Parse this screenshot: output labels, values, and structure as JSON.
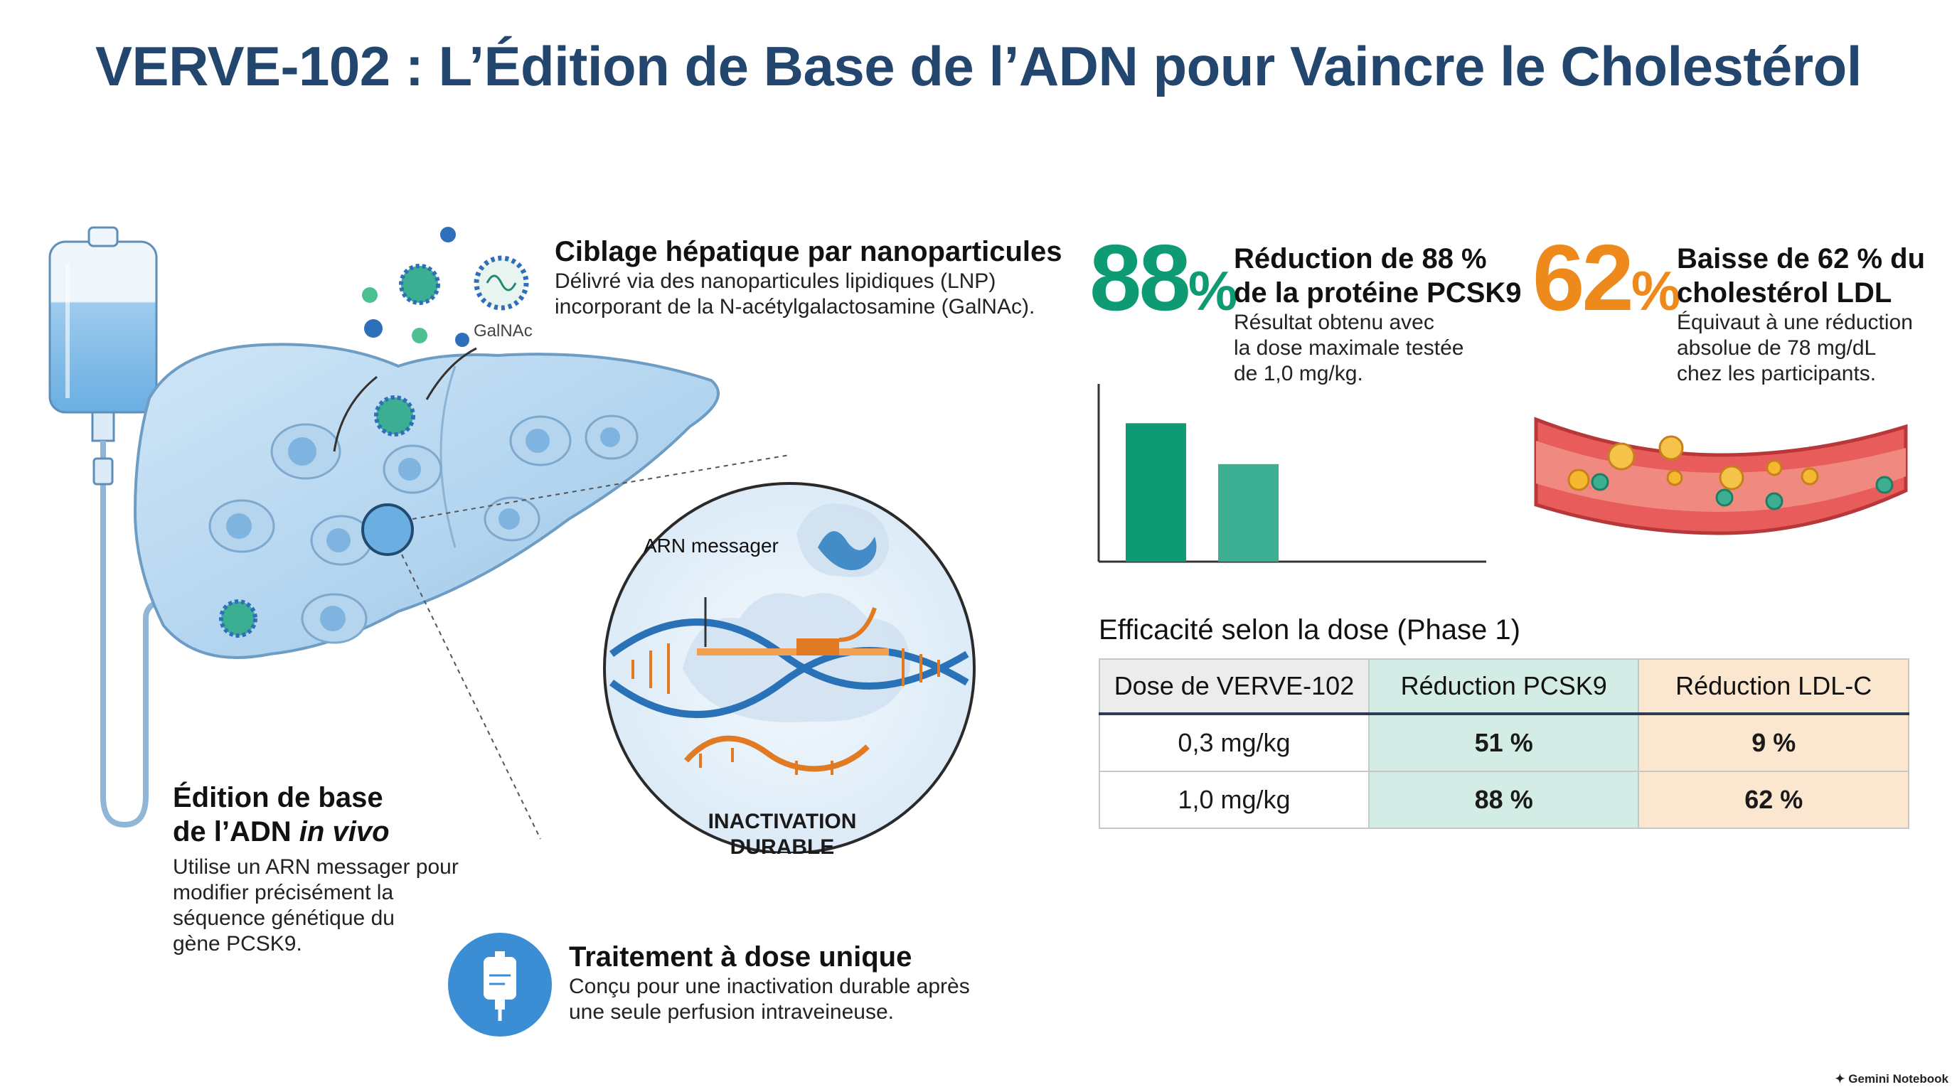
{
  "title": "VERVE-102 : L’Édition de Base de l’ADN pour Vaincre le Cholestérol",
  "targeting": {
    "heading": "Ciblage hépatique par nanoparticules",
    "lines": [
      "Délivré via des nanoparticules lipidiques (LNP)",
      "incorporant de la N-acétylgalactosamine (GalNAc)."
    ],
    "galnac_label": "GalNAc"
  },
  "zoom": {
    "mrna_label": "ARN messager",
    "result_lines": [
      "INACTIVATION",
      "DURABLE"
    ]
  },
  "editing": {
    "heading_line1": "Édition de base",
    "heading_line2_prefix": "de l’ADN ",
    "heading_line2_italic": "in vivo",
    "lines": [
      "Utilise un ARN messager pour",
      "modifier précisément la",
      "séquence génétique du",
      "gène PCSK9."
    ]
  },
  "single_dose": {
    "heading": "Traitement à dose unique",
    "lines": [
      "Conçu pour une inactivation durable après",
      "une seule perfusion intraveineuse."
    ],
    "icon": "iv-bag-icon"
  },
  "stat_pcsk9": {
    "number": "88",
    "unit": "%",
    "color": "#0e9a73",
    "heading_line1": "Réduction de 88 %",
    "heading_line2": "de la protéine PCSK9",
    "lines": [
      "Résultat obtenu avec",
      "la dose maximale testée",
      "de 1,0 mg/kg."
    ]
  },
  "stat_ldl": {
    "number": "62",
    "unit": "%",
    "color": "#ee8a1c",
    "heading_line1": "Baisse de 62 % du",
    "heading_line2": "cholestérol LDL",
    "lines": [
      "Équivaut à une réduction",
      "absolue de 78 mg/dL",
      "chez les participants."
    ]
  },
  "chart_data": {
    "type": "bar",
    "title": "",
    "xlabel": "",
    "ylabel": "",
    "categories": [
      "",
      ""
    ],
    "values": [
      88,
      62
    ],
    "ylim": [
      0,
      113
    ],
    "colors": [
      "#0e9a73",
      "#3cae91"
    ],
    "grid": false
  },
  "table": {
    "title": "Efficacité selon la dose (Phase 1)",
    "headers": [
      "Dose de VERVE-102",
      "Réduction PCSK9",
      "Réduction LDL-C"
    ],
    "header_colors": [
      "#ececec",
      "#d3ede6",
      "#fbe6cf"
    ],
    "col_colors": [
      "#ffffff",
      "#d3ede6",
      "#fbe6cf"
    ],
    "rows": [
      [
        "0,3 mg/kg",
        "51 %",
        "9 %"
      ],
      [
        "1,0 mg/kg",
        "88 %",
        "62 %"
      ]
    ]
  },
  "brand": "Gemini Notebook"
}
